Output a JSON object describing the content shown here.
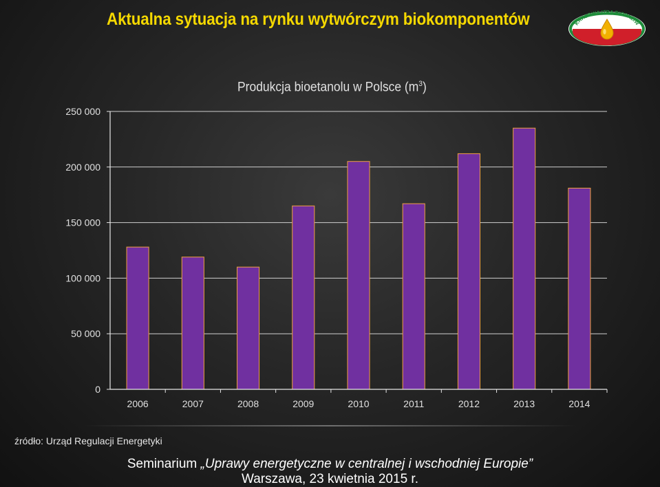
{
  "slide": {
    "title": "Aktualna sytuacja na rynku wytwórczym biokomponentów",
    "logo_text": "KRAJOWA IZBA BIOPALIW",
    "source": "źródło: Urząd Regulacji Energetyki",
    "footer": {
      "line1_prefix": "Seminarium ",
      "line1_italic": "„Uprawy energetyczne w centralnej i wschodniej Europie”",
      "line2": "Warszawa, 23 kwietnia 2015 r."
    }
  },
  "chart_data": {
    "type": "bar",
    "title_main": "Produkcja bioetanolu w Polsce (m",
    "title_sup": "3",
    "title_close": ")",
    "categories": [
      "2006",
      "2007",
      "2008",
      "2009",
      "2010",
      "2011",
      "2012",
      "2013",
      "2014"
    ],
    "values": [
      128000,
      119000,
      110000,
      165000,
      205000,
      167000,
      212000,
      235000,
      181000
    ],
    "ylim": [
      0,
      250000
    ],
    "yticks": [
      0,
      50000,
      100000,
      150000,
      200000,
      250000
    ],
    "ytick_labels": [
      "0",
      "50 000",
      "100 000",
      "150 000",
      "200 000",
      "250 000"
    ],
    "xlabel": "",
    "ylabel": "",
    "grid": true,
    "legend": "none",
    "colors": {
      "bar_fill": "#7030a0",
      "bar_edge": "#f0a040",
      "axis": "#e8e8e8",
      "text": "#e0e0e0"
    }
  }
}
